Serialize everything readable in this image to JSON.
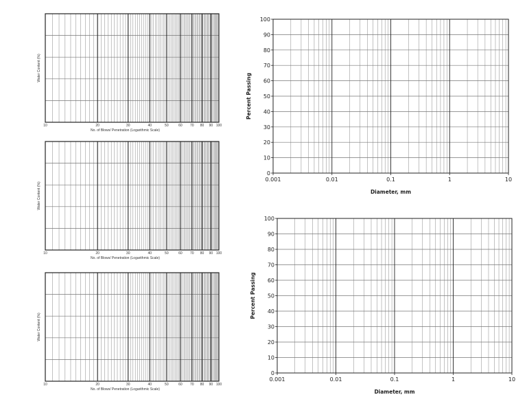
{
  "colors": {
    "grid": "#777777",
    "frame": "#222222",
    "text": "#222222"
  },
  "chart_data": [
    {
      "type": "line",
      "xscale": "log",
      "xlim": [
        10,
        100
      ],
      "x_ticks": [
        10,
        20,
        30,
        40,
        50,
        60,
        70,
        80,
        90,
        100
      ],
      "x_tick_labels": [
        "10",
        "20",
        "30",
        "40",
        "50",
        "60",
        "70",
        "80",
        "90",
        "100"
      ],
      "xlabel": "No. of Blows/ Penetration (Logarithmic Scale)",
      "ylabel": "Water Content (%)",
      "grid": true,
      "series": []
    },
    {
      "type": "line",
      "xscale": "log",
      "xlim": [
        10,
        100
      ],
      "x_ticks": [
        10,
        20,
        30,
        40,
        50,
        60,
        70,
        80,
        90,
        100
      ],
      "x_tick_labels": [
        "10",
        "20",
        "30",
        "40",
        "50",
        "60",
        "70",
        "80",
        "90",
        "100"
      ],
      "xlabel": "No. of Blows/ Penetration (Logarithmic Scale)",
      "ylabel": "Water Content (%)",
      "grid": true,
      "series": []
    },
    {
      "type": "line",
      "xscale": "log",
      "xlim": [
        10,
        100
      ],
      "x_ticks": [
        10,
        20,
        30,
        40,
        50,
        60,
        70,
        80,
        90,
        100
      ],
      "x_tick_labels": [
        "10",
        "20",
        "30",
        "40",
        "50",
        "60",
        "70",
        "80",
        "90",
        "100"
      ],
      "xlabel": "No. of Blows/ Penetration (Logarithmic Scale)",
      "ylabel": "Water Content (%)",
      "grid": true,
      "series": []
    },
    {
      "type": "line",
      "xscale": "log",
      "xlim": [
        0.001,
        10
      ],
      "x_ticks": [
        0.001,
        0.01,
        0.1,
        1,
        10
      ],
      "x_tick_labels": [
        "0.001",
        "0.01",
        "0.1",
        "1",
        "10"
      ],
      "ylim": [
        0,
        100
      ],
      "y_ticks": [
        0,
        10,
        20,
        30,
        40,
        50,
        60,
        70,
        80,
        90,
        100
      ],
      "y_tick_labels": [
        "0",
        "10",
        "20",
        "30",
        "40",
        "50",
        "60",
        "70",
        "80",
        "90",
        "100"
      ],
      "xlabel": "Diameter, mm",
      "ylabel": "Percent Passing",
      "grid": true,
      "series": []
    },
    {
      "type": "line",
      "xscale": "log",
      "xlim": [
        0.001,
        10
      ],
      "x_ticks": [
        0.001,
        0.01,
        0.1,
        1,
        10
      ],
      "x_tick_labels": [
        "0.001",
        "0.01",
        "0.1",
        "1",
        "10"
      ],
      "ylim": [
        0,
        100
      ],
      "y_ticks": [
        0,
        10,
        20,
        30,
        40,
        50,
        60,
        70,
        80,
        90,
        100
      ],
      "y_tick_labels": [
        "0",
        "10",
        "20",
        "30",
        "40",
        "50",
        "60",
        "70",
        "80",
        "90",
        "100"
      ],
      "xlabel": "Diameter, mm",
      "ylabel": "Percent Passing",
      "grid": true,
      "series": []
    }
  ]
}
